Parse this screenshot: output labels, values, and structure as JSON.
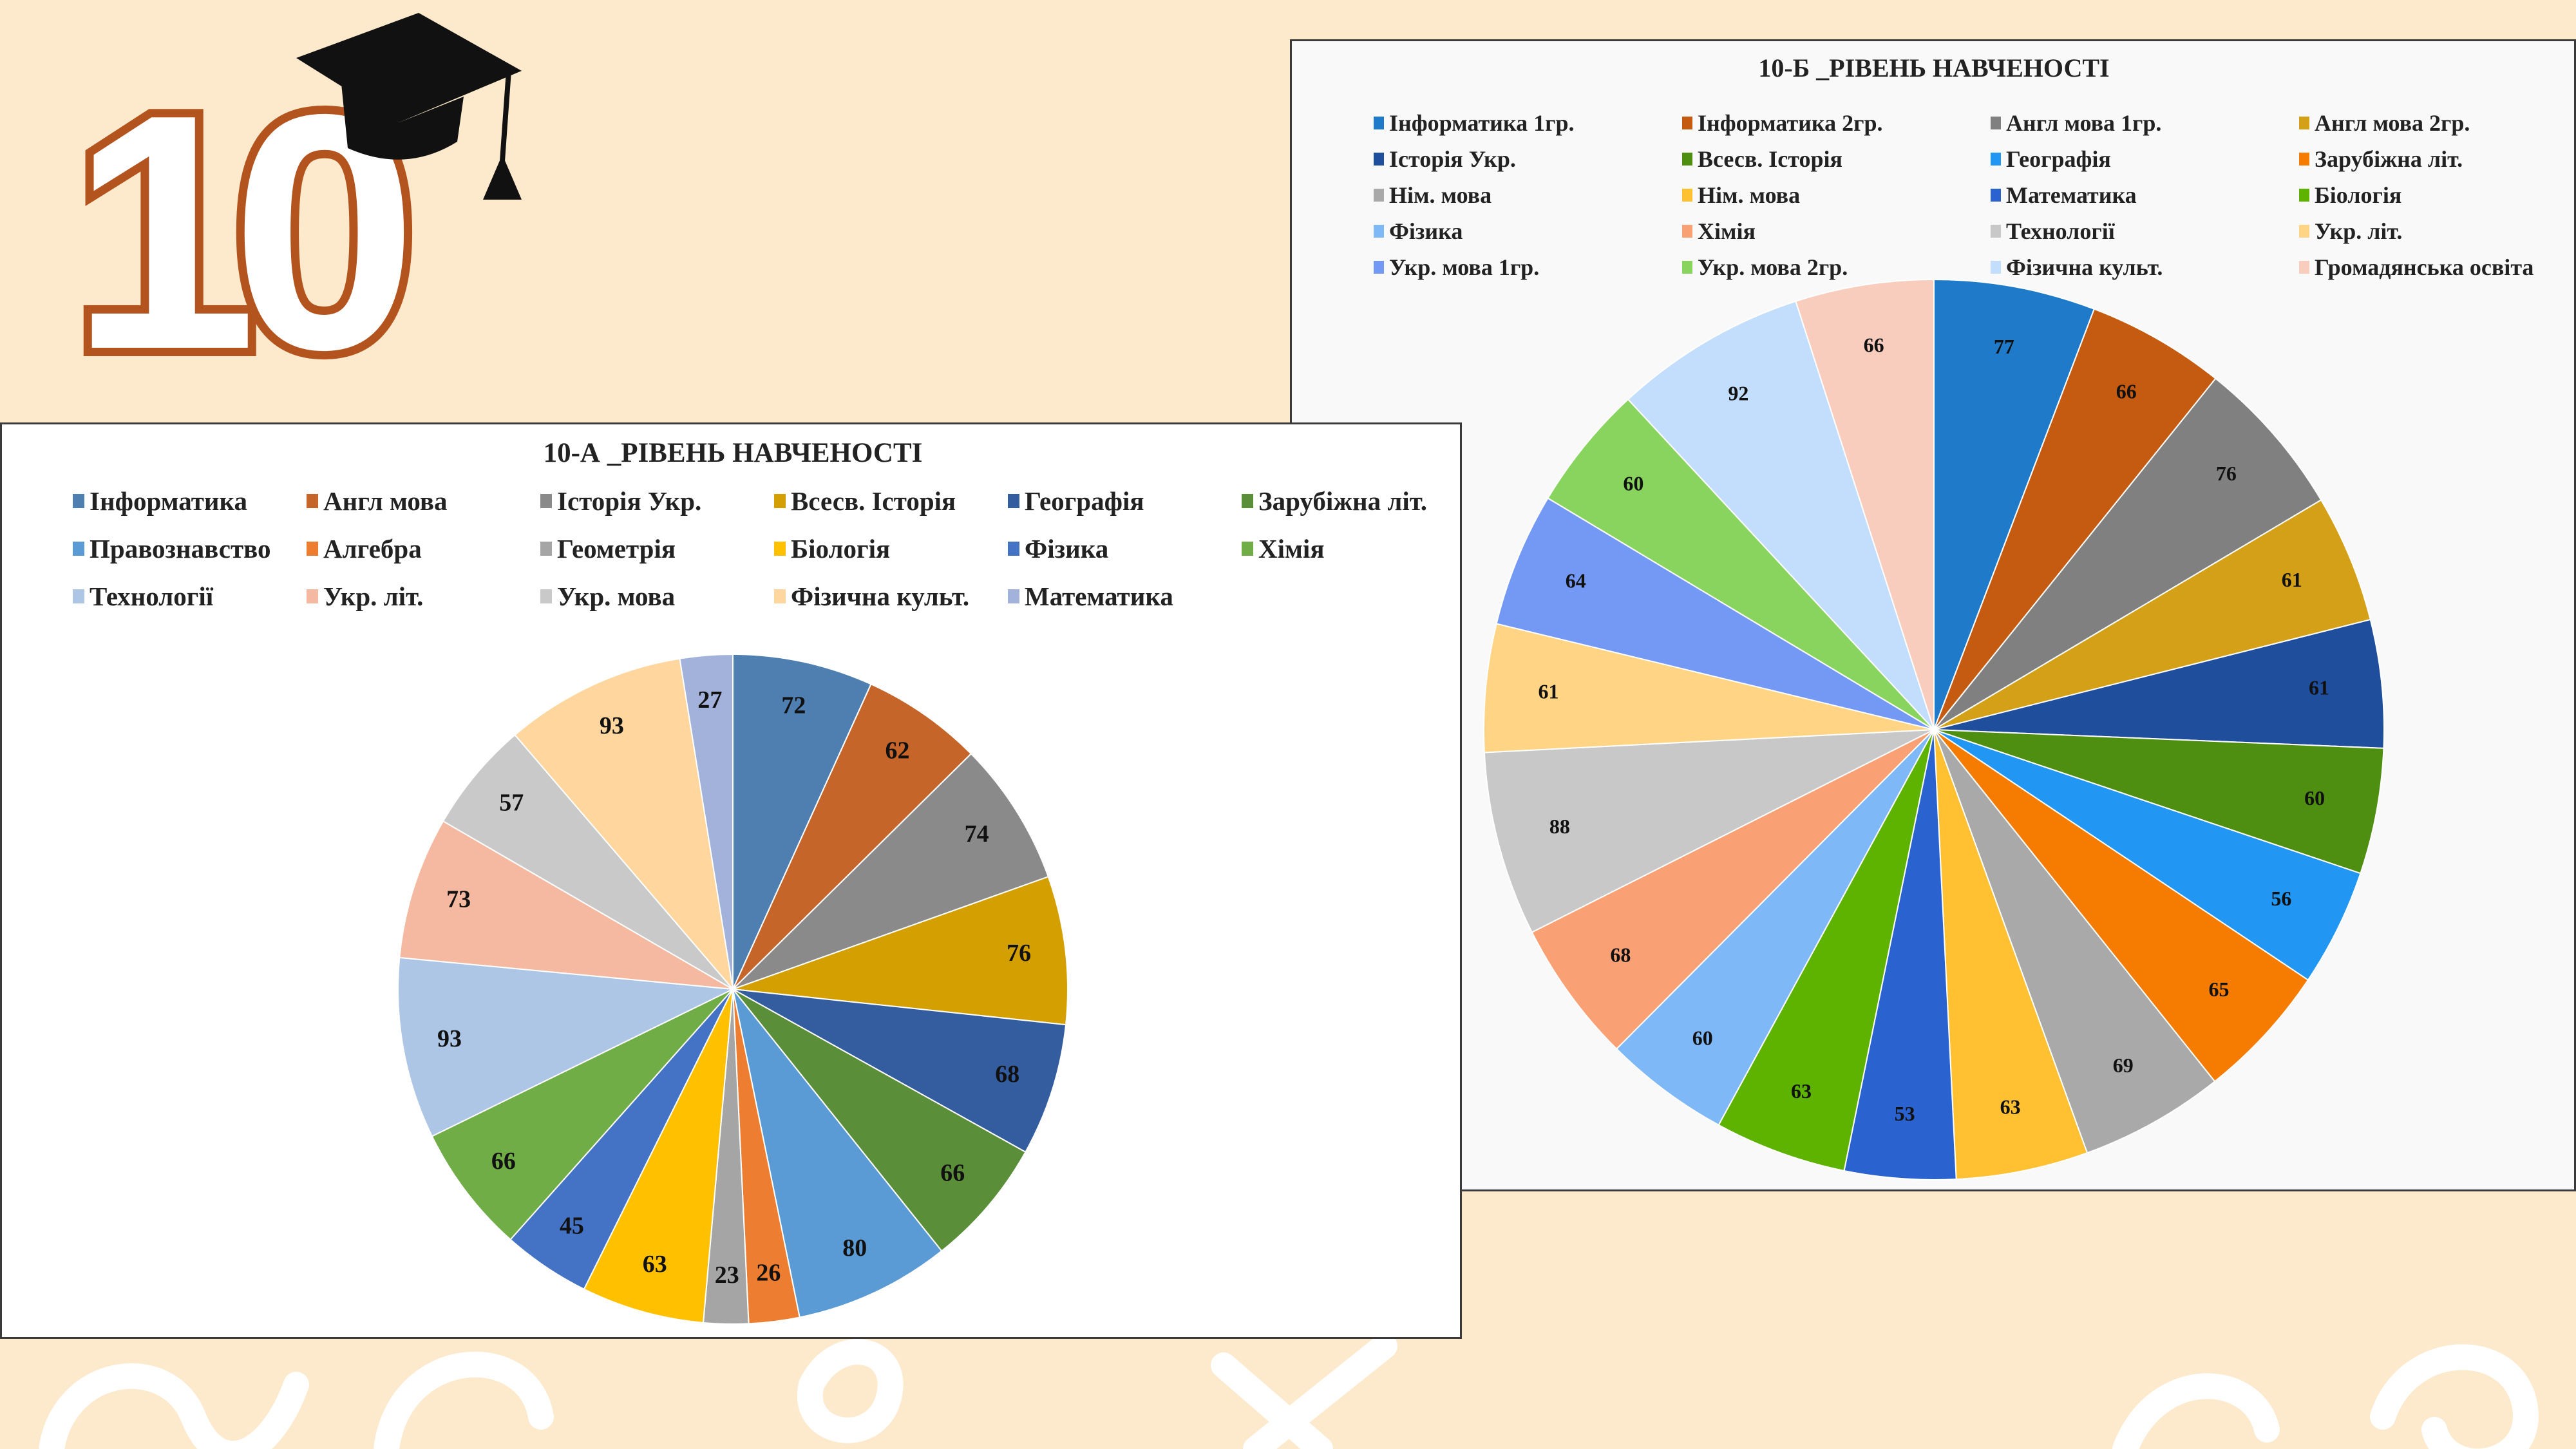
{
  "colors": {
    "background": "#fde9cb"
  },
  "logo": {
    "text": "10",
    "icon": "graduation-cap-icon"
  },
  "chart_data": [
    {
      "type": "pie",
      "title": "10-А _РІВЕНЬ НАВЧЕНОСТІ",
      "legend_position": "top",
      "categories": [
        "Інформатика",
        "Англ мова",
        "Історія Укр.",
        "Всесв. Історія",
        "Географія",
        "Зарубіжна літ.",
        "Правознавство",
        "Алгебра",
        "Геометрія",
        "Біологія",
        "Фізика",
        "Хімія",
        "Технології",
        "Укр. літ.",
        "Укр. мова",
        "Фізична культ.",
        "Математика"
      ],
      "values": [
        72,
        62,
        74,
        76,
        68,
        66,
        80,
        26,
        23,
        63,
        45,
        66,
        93,
        73,
        57,
        93,
        27
      ],
      "colors": [
        "#4e7fb0",
        "#c5652a",
        "#8a8a8a",
        "#d49f00",
        "#345da0",
        "#5b8e39",
        "#5b9bd5",
        "#ed7d31",
        "#a5a5a5",
        "#ffc000",
        "#4472c4",
        "#70ad47",
        "#adc6e6",
        "#f4b9a0",
        "#c9c9c9",
        "#ffd79e",
        "#a3b2da"
      ]
    },
    {
      "type": "pie",
      "title": "10-Б _РІВЕНЬ НАВЧЕНОСТІ",
      "legend_position": "top",
      "categories": [
        "Інформатика 1гр.",
        "Інформатика 2гр.",
        "Англ мова 1гр.",
        "Англ мова 2гр.",
        "Історія Укр.",
        "Всесв. Історія",
        "Географія",
        "Зарубіжна літ.",
        "Нім. мова",
        "Нім. мова",
        "Математика",
        "Біологія",
        "Фізика",
        "Хімія",
        "Технології",
        "Укр. літ.",
        "Укр. мова 1гр.",
        "Укр. мова 2гр.",
        "Фізична культ.",
        "Громадянська освіта"
      ],
      "values": [
        77,
        66,
        76,
        61,
        61,
        60,
        56,
        65,
        69,
        63,
        53,
        63,
        60,
        68,
        88,
        61,
        64,
        60,
        92,
        66
      ],
      "colors": [
        "#1f7bc9",
        "#c55a11",
        "#808080",
        "#d4a017",
        "#1f4e9c",
        "#4e8f12",
        "#2196f3",
        "#f57c00",
        "#a9a9a9",
        "#ffc132",
        "#2a62d0",
        "#5db300",
        "#7fb8f7",
        "#f9a074",
        "#c8c8c8",
        "#ffd585",
        "#7499f5",
        "#88d45f",
        "#c3ddfc",
        "#f9cdbe"
      ]
    }
  ]
}
